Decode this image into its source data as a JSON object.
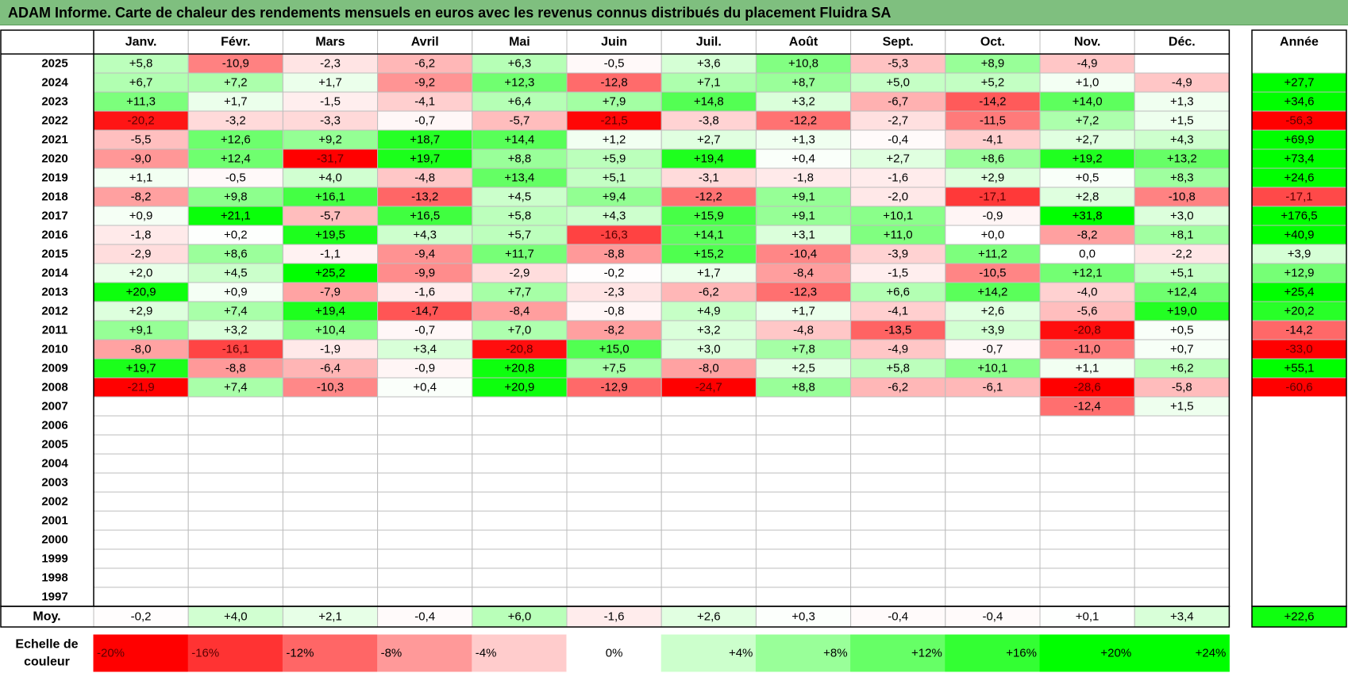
{
  "title": "ADAM Informe. Carte de chaleur des rendements mensuels en euros avec les revenus connus distribués du placement Fluidra SA",
  "chart_data": {
    "type": "heatmap",
    "title": "ADAM Informe. Carte de chaleur des rendements mensuels en euros avec les revenus connus distribués du placement Fluidra SA",
    "columns": [
      "Janv.",
      "Févr.",
      "Mars",
      "Avril",
      "Mai",
      "Juin",
      "Juil.",
      "Août",
      "Sept.",
      "Oct.",
      "Nov.",
      "Déc."
    ],
    "annual_label": "Année",
    "average_label": "Moy.",
    "rows": [
      {
        "year": "2025",
        "months": [
          "+5,8",
          "-10,9",
          "-2,3",
          "-6,2",
          "+6,3",
          "-0,5",
          "+3,6",
          "+10,8",
          "-5,3",
          "+8,9",
          "-4,9",
          ""
        ],
        "annual": ""
      },
      {
        "year": "2024",
        "months": [
          "+6,7",
          "+7,2",
          "+1,7",
          "-9,2",
          "+12,3",
          "-12,8",
          "+7,1",
          "+8,7",
          "+5,0",
          "+5,2",
          "+1,0",
          "-4,9"
        ],
        "annual": "+27,7"
      },
      {
        "year": "2023",
        "months": [
          "+11,3",
          "+1,7",
          "-1,5",
          "-4,1",
          "+6,4",
          "+7,9",
          "+14,8",
          "+3,2",
          "-6,7",
          "-14,2",
          "+14,0",
          "+1,3"
        ],
        "annual": "+34,6"
      },
      {
        "year": "2022",
        "months": [
          "-20,2",
          "-3,2",
          "-3,3",
          "-0,7",
          "-5,7",
          "-21,5",
          "-3,8",
          "-12,2",
          "-2,7",
          "-11,5",
          "+7,2",
          "+1,5"
        ],
        "annual": "-56,3"
      },
      {
        "year": "2021",
        "months": [
          "-5,5",
          "+12,6",
          "+9,2",
          "+18,7",
          "+14,4",
          "+1,2",
          "+2,7",
          "+1,3",
          "-0,4",
          "-4,1",
          "+2,7",
          "+4,3"
        ],
        "annual": "+69,9"
      },
      {
        "year": "2020",
        "months": [
          "-9,0",
          "+12,4",
          "-31,7",
          "+19,7",
          "+8,8",
          "+5,9",
          "+19,4",
          "+0,4",
          "+2,7",
          "+8,6",
          "+19,2",
          "+13,2"
        ],
        "annual": "+73,4"
      },
      {
        "year": "2019",
        "months": [
          "+1,1",
          "-0,5",
          "+4,0",
          "-4,8",
          "+13,4",
          "+5,1",
          "-3,1",
          "-1,8",
          "-1,6",
          "+2,9",
          "+0,5",
          "+8,3"
        ],
        "annual": "+24,6"
      },
      {
        "year": "2018",
        "months": [
          "-8,2",
          "+9,8",
          "+16,1",
          "-13,2",
          "+4,5",
          "+9,4",
          "-12,2",
          "+9,1",
          "-2,0",
          "-17,1",
          "+2,8",
          "-10,8"
        ],
        "annual": "-17,1"
      },
      {
        "year": "2017",
        "months": [
          "+0,9",
          "+21,1",
          "-5,7",
          "+16,5",
          "+5,8",
          "+4,3",
          "+15,9",
          "+9,1",
          "+10,1",
          "-0,9",
          "+31,8",
          "+3,0"
        ],
        "annual": "+176,5"
      },
      {
        "year": "2016",
        "months": [
          "-1,8",
          "+0,2",
          "+19,5",
          "+4,3",
          "+5,7",
          "-16,3",
          "+14,1",
          "+3,1",
          "+11,0",
          "+0,0",
          "-8,2",
          "+8,1"
        ],
        "annual": "+40,9"
      },
      {
        "year": "2015",
        "months": [
          "-2,9",
          "+8,6",
          "-1,1",
          "-9,4",
          "+11,7",
          "-8,8",
          "+15,2",
          "-10,4",
          "-3,9",
          "+11,2",
          "0,0",
          "-2,2"
        ],
        "annual": "+3,9"
      },
      {
        "year": "2014",
        "months": [
          "+2,0",
          "+4,5",
          "+25,2",
          "-9,9",
          "-2,9",
          "-0,2",
          "+1,7",
          "-8,4",
          "-1,5",
          "-10,5",
          "+12,1",
          "+5,1"
        ],
        "annual": "+12,9"
      },
      {
        "year": "2013",
        "months": [
          "+20,9",
          "+0,9",
          "-7,9",
          "-1,6",
          "+7,7",
          "-2,3",
          "-6,2",
          "-12,3",
          "+6,6",
          "+14,2",
          "-4,0",
          "+12,4"
        ],
        "annual": "+25,4"
      },
      {
        "year": "2012",
        "months": [
          "+2,9",
          "+7,4",
          "+19,4",
          "-14,7",
          "-8,4",
          "-0,8",
          "+4,9",
          "+1,7",
          "-4,1",
          "+2,6",
          "-5,6",
          "+19,0"
        ],
        "annual": "+20,2"
      },
      {
        "year": "2011",
        "months": [
          "+9,1",
          "+3,2",
          "+10,4",
          "-0,7",
          "+7,0",
          "-8,2",
          "+3,2",
          "-4,8",
          "-13,5",
          "+3,9",
          "-20,8",
          "+0,5"
        ],
        "annual": "-14,2"
      },
      {
        "year": "2010",
        "months": [
          "-8,0",
          "-16,1",
          "-1,9",
          "+3,4",
          "-20,8",
          "+15,0",
          "+3,0",
          "+7,8",
          "-4,9",
          "-0,7",
          "-11,0",
          "+0,7"
        ],
        "annual": "-33,0"
      },
      {
        "year": "2009",
        "months": [
          "+19,7",
          "-8,8",
          "-6,4",
          "-0,9",
          "+20,8",
          "+7,5",
          "-8,0",
          "+2,5",
          "+5,8",
          "+10,1",
          "+1,1",
          "+6,2"
        ],
        "annual": "+55,1"
      },
      {
        "year": "2008",
        "months": [
          "-21,9",
          "+7,4",
          "-10,3",
          "+0,4",
          "+20,9",
          "-12,9",
          "-24,7",
          "+8,8",
          "-6,2",
          "-6,1",
          "-28,6",
          "-5,8"
        ],
        "annual": "-60,6"
      },
      {
        "year": "2007",
        "months": [
          "",
          "",
          "",
          "",
          "",
          "",
          "",
          "",
          "",
          "",
          "-12,4",
          "+1,5"
        ],
        "annual": ""
      },
      {
        "year": "2006",
        "months": [
          "",
          "",
          "",
          "",
          "",
          "",
          "",
          "",
          "",
          "",
          "",
          ""
        ],
        "annual": ""
      },
      {
        "year": "2005",
        "months": [
          "",
          "",
          "",
          "",
          "",
          "",
          "",
          "",
          "",
          "",
          "",
          ""
        ],
        "annual": ""
      },
      {
        "year": "2004",
        "months": [
          "",
          "",
          "",
          "",
          "",
          "",
          "",
          "",
          "",
          "",
          "",
          ""
        ],
        "annual": ""
      },
      {
        "year": "2003",
        "months": [
          "",
          "",
          "",
          "",
          "",
          "",
          "",
          "",
          "",
          "",
          "",
          ""
        ],
        "annual": ""
      },
      {
        "year": "2002",
        "months": [
          "",
          "",
          "",
          "",
          "",
          "",
          "",
          "",
          "",
          "",
          "",
          ""
        ],
        "annual": ""
      },
      {
        "year": "2001",
        "months": [
          "",
          "",
          "",
          "",
          "",
          "",
          "",
          "",
          "",
          "",
          "",
          ""
        ],
        "annual": ""
      },
      {
        "year": "2000",
        "months": [
          "",
          "",
          "",
          "",
          "",
          "",
          "",
          "",
          "",
          "",
          "",
          ""
        ],
        "annual": ""
      },
      {
        "year": "1999",
        "months": [
          "",
          "",
          "",
          "",
          "",
          "",
          "",
          "",
          "",
          "",
          "",
          ""
        ],
        "annual": ""
      },
      {
        "year": "1998",
        "months": [
          "",
          "",
          "",
          "",
          "",
          "",
          "",
          "",
          "",
          "",
          "",
          ""
        ],
        "annual": ""
      },
      {
        "year": "1997",
        "months": [
          "",
          "",
          "",
          "",
          "",
          "",
          "",
          "",
          "",
          "",
          "",
          ""
        ],
        "annual": ""
      }
    ],
    "average": {
      "months": [
        "-0,2",
        "+4,0",
        "+2,1",
        "-0,4",
        "+6,0",
        "-1,6",
        "+2,6",
        "+0,3",
        "-0,4",
        "-0,4",
        "+0,1",
        "+3,4"
      ],
      "annual": "+22,6"
    },
    "scale_label": "Echelle de couleur",
    "scale": [
      {
        "label": "-20%",
        "value": -20
      },
      {
        "label": "-16%",
        "value": -16
      },
      {
        "label": "-12%",
        "value": -12
      },
      {
        "label": "-8%",
        "value": -8
      },
      {
        "label": "-4%",
        "value": -4
      },
      {
        "label": "0%",
        "value": 0
      },
      {
        "label": "+4%",
        "value": 4
      },
      {
        "label": "+8%",
        "value": 8
      },
      {
        "label": "+12%",
        "value": 12
      },
      {
        "label": "+16%",
        "value": 16
      },
      {
        "label": "+20%",
        "value": 20
      },
      {
        "label": "+24%",
        "value": 24
      }
    ],
    "colors": {
      "negative": "#ff0000",
      "neutral": "#ffffff",
      "positive": "#00ff00",
      "title_bar": "#7fbf7f"
    }
  }
}
